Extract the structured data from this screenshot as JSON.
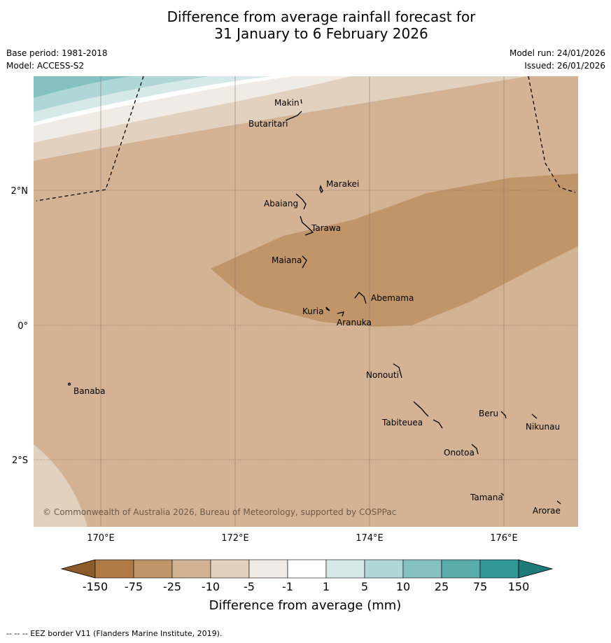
{
  "title": {
    "line1": "Difference from average rainfall forecast for",
    "line2": "31 January to 6 February 2026"
  },
  "meta": {
    "base_period": "Base period: 1981-2018",
    "model": "Model: ACCESS-S2",
    "model_run": "Model run: 24/01/2026",
    "issued": "Issued: 26/01/2026"
  },
  "map": {
    "lon_labels": [
      "170°E",
      "172°E",
      "174°E",
      "176°E"
    ],
    "lat_labels": [
      "2°N",
      "0°",
      "2°S"
    ],
    "places": [
      "Makin",
      "Butaritari",
      "Marakei",
      "Abaiang",
      "Tarawa",
      "Maiana",
      "Abemama",
      "Kuria",
      "Aranuka",
      "Nonouti",
      "Banaba",
      "Tabiteuea",
      "Beru",
      "Nikunau",
      "Onotoa",
      "Tamana",
      "Arorae"
    ],
    "copyright": "© Commonwealth of Australia 2026, Bureau of Meteorology, supported by COSPPac"
  },
  "colorbar": {
    "ticks": [
      "-150",
      "-75",
      "-25",
      "-10",
      "-5",
      "-1",
      "1",
      "5",
      "10",
      "25",
      "75",
      "150"
    ],
    "colors": [
      "#8a5a2b",
      "#b07a44",
      "#c1956a",
      "#d3b394",
      "#e3d1c0",
      "#f1ebe5",
      "#ffffff",
      "#d6e9e9",
      "#b0d7d7",
      "#86c1c1",
      "#5cabab",
      "#329898",
      "#1f7a7a"
    ],
    "label": "Difference from average (mm)"
  },
  "footer": "--  --  -- EEZ border V11 (Flanders Marine Institute, 2019)."
}
